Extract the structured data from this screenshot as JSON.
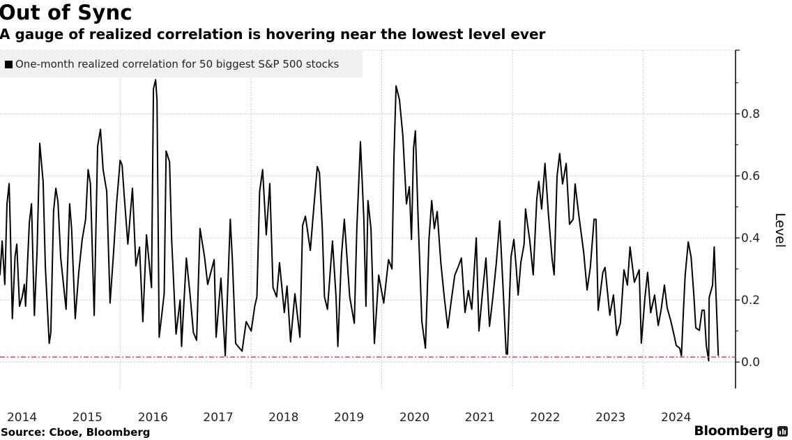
{
  "header": {
    "title": "Out of Sync",
    "subtitle": "A gauge of realized correlation is hovering near the lowest level ever"
  },
  "footer": {
    "source": "Source: Cboe, Bloomberg",
    "brand": "Bloomberg"
  },
  "colors": {
    "series": "#000000",
    "reference_line": "#e8476a",
    "grid": "#c8c8c8",
    "legend_bg": "#f0f0f0"
  },
  "chart_data": {
    "type": "line",
    "title": "Out of Sync",
    "subtitle": "A gauge of realized correlation is hovering near the lowest level ever",
    "ylabel": "Level",
    "xlabel": "",
    "y_axis_side": "right",
    "ylim": [
      -0.085,
      1.005
    ],
    "xlim": [
      "2014-03-01",
      "2025-05-30"
    ],
    "y_ticks": [
      0.0,
      0.2,
      0.4,
      0.6,
      0.8
    ],
    "y_tick_labels": [
      "0.0",
      "0.2",
      "0.4",
      "0.6",
      "0.8"
    ],
    "x_tick_labels": [
      "2014",
      "2015",
      "2016",
      "2017",
      "2018",
      "2019",
      "2020",
      "2021",
      "2022",
      "2023",
      "2024"
    ],
    "grid": true,
    "legend_placement": "top-left",
    "reference_line": {
      "value": 0.016,
      "style": "dash-dot",
      "color": "#e8476a"
    },
    "series": [
      {
        "name": "One-month realized correlation for 50 biggest S&P 500 stocks",
        "color": "#000000",
        "points": [
          [
            "2014-03-01",
            0.28
          ],
          [
            "2014-03-13",
            0.39
          ],
          [
            "2014-03-28",
            0.25
          ],
          [
            "2014-04-09",
            0.51
          ],
          [
            "2014-04-21",
            0.575
          ],
          [
            "2014-04-27",
            0.45
          ],
          [
            "2014-05-09",
            0.14
          ],
          [
            "2014-05-24",
            0.34
          ],
          [
            "2014-06-03",
            0.38
          ],
          [
            "2014-06-18",
            0.18
          ],
          [
            "2014-07-03",
            0.21
          ],
          [
            "2014-07-15",
            0.25
          ],
          [
            "2014-07-22",
            0.18
          ],
          [
            "2014-08-12",
            0.45
          ],
          [
            "2014-08-24",
            0.51
          ],
          [
            "2014-09-09",
            0.15
          ],
          [
            "2014-09-24",
            0.36
          ],
          [
            "2014-10-09",
            0.705
          ],
          [
            "2014-10-28",
            0.58
          ],
          [
            "2014-11-09",
            0.31
          ],
          [
            "2014-12-01",
            0.06
          ],
          [
            "2014-12-10",
            0.095
          ],
          [
            "2014-12-25",
            0.485
          ],
          [
            "2015-01-07",
            0.56
          ],
          [
            "2015-01-19",
            0.515
          ],
          [
            "2015-02-03",
            0.335
          ],
          [
            "2015-03-05",
            0.17
          ],
          [
            "2015-03-25",
            0.51
          ],
          [
            "2015-04-05",
            0.43
          ],
          [
            "2015-04-25",
            0.14
          ],
          [
            "2015-05-15",
            0.29
          ],
          [
            "2015-06-03",
            0.395
          ],
          [
            "2015-06-22",
            0.46
          ],
          [
            "2015-07-06",
            0.62
          ],
          [
            "2015-07-19",
            0.575
          ],
          [
            "2015-08-09",
            0.15
          ],
          [
            "2015-08-28",
            0.695
          ],
          [
            "2015-09-13",
            0.75
          ],
          [
            "2015-09-28",
            0.62
          ],
          [
            "2015-10-18",
            0.55
          ],
          [
            "2015-11-06",
            0.19
          ],
          [
            "2015-11-26",
            0.36
          ],
          [
            "2015-12-12",
            0.51
          ],
          [
            "2016-01-01",
            0.65
          ],
          [
            "2016-01-12",
            0.635
          ],
          [
            "2016-01-24",
            0.535
          ],
          [
            "2016-02-13",
            0.38
          ],
          [
            "2016-03-10",
            0.56
          ],
          [
            "2016-03-29",
            0.31
          ],
          [
            "2016-04-18",
            0.37
          ],
          [
            "2016-05-07",
            0.13
          ],
          [
            "2016-05-27",
            0.41
          ],
          [
            "2016-06-24",
            0.24
          ],
          [
            "2016-07-05",
            0.88
          ],
          [
            "2016-07-17",
            0.91
          ],
          [
            "2016-07-25",
            0.845
          ],
          [
            "2016-08-06",
            0.08
          ],
          [
            "2016-09-03",
            0.22
          ],
          [
            "2016-09-14",
            0.68
          ],
          [
            "2016-10-03",
            0.645
          ],
          [
            "2016-10-15",
            0.39
          ],
          [
            "2016-11-08",
            0.09
          ],
          [
            "2016-12-01",
            0.2
          ],
          [
            "2016-12-09",
            0.05
          ],
          [
            "2017-01-05",
            0.335
          ],
          [
            "2017-01-25",
            0.22
          ],
          [
            "2017-02-13",
            0.095
          ],
          [
            "2017-03-03",
            0.07
          ],
          [
            "2017-03-22",
            0.43
          ],
          [
            "2017-04-16",
            0.34
          ],
          [
            "2017-05-04",
            0.25
          ],
          [
            "2017-06-09",
            0.33
          ],
          [
            "2017-06-20",
            0.08
          ],
          [
            "2017-07-17",
            0.27
          ],
          [
            "2017-08-10",
            0.02
          ],
          [
            "2017-09-07",
            0.46
          ],
          [
            "2017-09-19",
            0.33
          ],
          [
            "2017-10-07",
            0.06
          ],
          [
            "2017-11-12",
            0.035
          ],
          [
            "2017-12-05",
            0.13
          ],
          [
            "2018-01-02",
            0.1
          ],
          [
            "2018-01-22",
            0.18
          ],
          [
            "2018-02-03",
            0.21
          ],
          [
            "2018-02-18",
            0.55
          ],
          [
            "2018-03-07",
            0.62
          ],
          [
            "2018-03-27",
            0.41
          ],
          [
            "2018-04-16",
            0.575
          ],
          [
            "2018-05-04",
            0.24
          ],
          [
            "2018-05-24",
            0.21
          ],
          [
            "2018-06-09",
            0.32
          ],
          [
            "2018-07-06",
            0.16
          ],
          [
            "2018-07-21",
            0.245
          ],
          [
            "2018-08-10",
            0.065
          ],
          [
            "2018-09-03",
            0.22
          ],
          [
            "2018-10-01",
            0.08
          ],
          [
            "2018-10-16",
            0.44
          ],
          [
            "2018-11-01",
            0.47
          ],
          [
            "2018-11-28",
            0.36
          ],
          [
            "2018-12-18",
            0.5
          ],
          [
            "2019-01-06",
            0.63
          ],
          [
            "2019-01-18",
            0.61
          ],
          [
            "2019-02-03",
            0.43
          ],
          [
            "2019-02-15",
            0.21
          ],
          [
            "2019-03-04",
            0.17
          ],
          [
            "2019-04-01",
            0.39
          ],
          [
            "2019-04-21",
            0.21
          ],
          [
            "2019-05-01",
            0.05
          ],
          [
            "2019-05-21",
            0.34
          ],
          [
            "2019-06-06",
            0.46
          ],
          [
            "2019-07-06",
            0.21
          ],
          [
            "2019-08-01",
            0.125
          ],
          [
            "2019-08-15",
            0.43
          ],
          [
            "2019-09-04",
            0.71
          ],
          [
            "2019-09-23",
            0.46
          ],
          [
            "2019-10-05",
            0.18
          ],
          [
            "2019-10-16",
            0.52
          ],
          [
            "2019-11-02",
            0.43
          ],
          [
            "2019-11-21",
            0.06
          ],
          [
            "2019-12-15",
            0.28
          ],
          [
            "2020-01-12",
            0.19
          ],
          [
            "2020-02-08",
            0.33
          ],
          [
            "2020-02-27",
            0.3
          ],
          [
            "2020-03-09",
            0.655
          ],
          [
            "2020-03-21",
            0.89
          ],
          [
            "2020-04-09",
            0.845
          ],
          [
            "2020-04-28",
            0.73
          ],
          [
            "2020-05-18",
            0.51
          ],
          [
            "2020-06-03",
            0.565
          ],
          [
            "2020-06-15",
            0.395
          ],
          [
            "2020-06-27",
            0.69
          ],
          [
            "2020-07-07",
            0.745
          ],
          [
            "2020-07-23",
            0.45
          ],
          [
            "2020-08-12",
            0.13
          ],
          [
            "2020-09-01",
            0.045
          ],
          [
            "2020-09-21",
            0.395
          ],
          [
            "2020-10-06",
            0.52
          ],
          [
            "2020-10-21",
            0.43
          ],
          [
            "2020-11-06",
            0.485
          ],
          [
            "2020-11-26",
            0.32
          ],
          [
            "2020-12-15",
            0.21
          ],
          [
            "2021-01-04",
            0.11
          ],
          [
            "2021-01-24",
            0.2
          ],
          [
            "2021-02-12",
            0.28
          ],
          [
            "2021-03-02",
            0.305
          ],
          [
            "2021-03-21",
            0.335
          ],
          [
            "2021-04-10",
            0.16
          ],
          [
            "2021-04-29",
            0.23
          ],
          [
            "2021-05-18",
            0.17
          ],
          [
            "2021-06-12",
            0.4
          ],
          [
            "2021-06-27",
            0.1
          ],
          [
            "2021-07-16",
            0.22
          ],
          [
            "2021-08-05",
            0.335
          ],
          [
            "2021-08-25",
            0.115
          ],
          [
            "2021-09-13",
            0.21
          ],
          [
            "2021-10-02",
            0.32
          ],
          [
            "2021-10-21",
            0.455
          ],
          [
            "2021-11-11",
            0.21
          ],
          [
            "2021-11-26",
            0.027
          ],
          [
            "2021-12-03",
            0.025
          ],
          [
            "2021-12-23",
            0.34
          ],
          [
            "2022-01-08",
            0.395
          ],
          [
            "2022-01-20",
            0.314
          ],
          [
            "2022-02-01",
            0.216
          ],
          [
            "2022-02-16",
            0.322
          ],
          [
            "2022-03-06",
            0.379
          ],
          [
            "2022-03-14",
            0.493
          ],
          [
            "2022-03-25",
            0.444
          ],
          [
            "2022-04-06",
            0.395
          ],
          [
            "2022-04-26",
            0.281
          ],
          [
            "2022-05-16",
            0.525
          ],
          [
            "2022-05-27",
            0.582
          ],
          [
            "2022-06-12",
            0.493
          ],
          [
            "2022-07-01",
            0.64
          ],
          [
            "2022-07-20",
            0.477
          ],
          [
            "2022-08-10",
            0.33
          ],
          [
            "2022-08-21",
            0.281
          ],
          [
            "2022-09-06",
            0.599
          ],
          [
            "2022-09-21",
            0.672
          ],
          [
            "2022-10-07",
            0.574
          ],
          [
            "2022-10-27",
            0.64
          ],
          [
            "2022-11-15",
            0.444
          ],
          [
            "2022-12-05",
            0.46
          ],
          [
            "2022-12-16",
            0.574
          ],
          [
            "2023-01-05",
            0.477
          ],
          [
            "2023-02-02",
            0.354
          ],
          [
            "2023-02-21",
            0.232
          ],
          [
            "2023-03-11",
            0.305
          ],
          [
            "2023-04-01",
            0.46
          ],
          [
            "2023-04-12",
            0.46
          ],
          [
            "2023-04-24",
            0.167
          ],
          [
            "2023-05-20",
            0.289
          ],
          [
            "2023-06-01",
            0.305
          ],
          [
            "2023-06-28",
            0.151
          ],
          [
            "2023-07-18",
            0.216
          ],
          [
            "2023-08-06",
            0.086
          ],
          [
            "2023-08-26",
            0.126
          ],
          [
            "2023-09-15",
            0.297
          ],
          [
            "2023-10-04",
            0.248
          ],
          [
            "2023-10-19",
            0.371
          ],
          [
            "2023-11-12",
            0.257
          ],
          [
            "2023-12-09",
            0.297
          ],
          [
            "2023-12-21",
            0.061
          ],
          [
            "2024-01-10",
            0.208
          ],
          [
            "2024-01-25",
            0.289
          ],
          [
            "2024-02-11",
            0.159
          ],
          [
            "2024-03-04",
            0.216
          ],
          [
            "2024-03-24",
            0.118
          ],
          [
            "2024-04-09",
            0.167
          ],
          [
            "2024-04-28",
            0.248
          ],
          [
            "2024-05-13",
            0.175
          ],
          [
            "2024-06-02",
            0.134
          ],
          [
            "2024-06-21",
            0.086
          ],
          [
            "2024-07-03",
            0.053
          ],
          [
            "2024-07-22",
            0.045
          ],
          [
            "2024-08-01",
            0.02
          ],
          [
            "2024-08-12",
            0.167
          ],
          [
            "2024-08-22",
            0.281
          ],
          [
            "2024-09-08",
            0.387
          ],
          [
            "2024-09-24",
            0.338
          ],
          [
            "2024-10-09",
            0.216
          ],
          [
            "2024-10-20",
            0.11
          ],
          [
            "2024-11-09",
            0.102
          ],
          [
            "2024-11-24",
            0.167
          ],
          [
            "2024-12-06",
            0.167
          ],
          [
            "2024-12-18",
            0.053
          ],
          [
            "2024-12-31",
            0.004
          ],
          [
            "2025-01-03",
            0.208
          ],
          [
            "2025-01-22",
            0.248
          ],
          [
            "2025-01-31",
            0.371
          ],
          [
            "2025-02-11",
            0.2
          ],
          [
            "2025-02-23",
            0.02
          ]
        ]
      }
    ]
  }
}
